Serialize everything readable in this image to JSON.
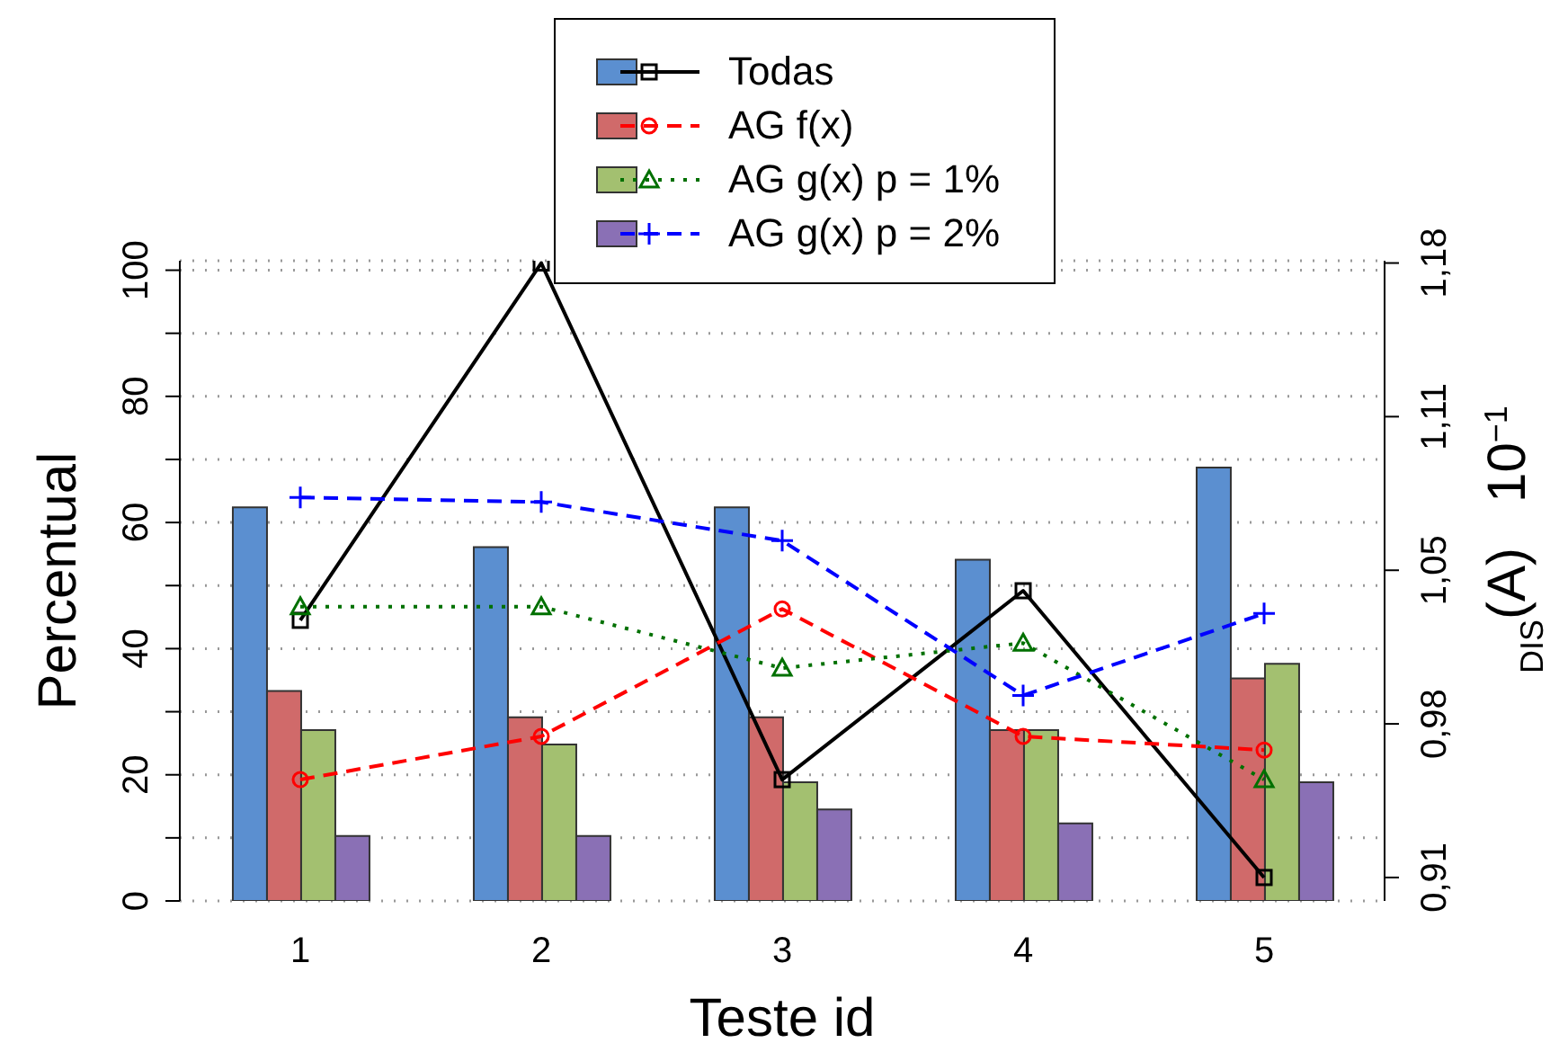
{
  "chart_data": {
    "type": "bar",
    "xlabel": "Teste id",
    "ylabel": "Percentual",
    "y2label": "$_{DIS}$(A)   10$^{−1}$",
    "categories": [
      "1",
      "2",
      "3",
      "4",
      "5"
    ],
    "series": [
      {
        "name": "Todas",
        "color": "#5b8fd0",
        "values": [
          62.4,
          56.1,
          62.4,
          54.1,
          68.7
        ]
      },
      {
        "name": "AG f(x)",
        "color": "#d06a6a",
        "values": [
          33.3,
          29.1,
          29.1,
          27.1,
          35.3
        ]
      },
      {
        "name": "AG g(x) p = 1%",
        "color": "#a3c070",
        "values": [
          27.1,
          24.8,
          18.8,
          27.1,
          37.6
        ]
      },
      {
        "name": "AG g(x) p = 2%",
        "color": "#8a70b5",
        "values": [
          10.3,
          10.3,
          14.5,
          12.3,
          18.8
        ]
      },
      {
        "type": "line",
        "axis": "y2",
        "color": "#000000",
        "marker": "square",
        "line_style": "solid",
        "values": [
          1.023,
          1.18,
          0.953,
          1.036,
          0.91
        ]
      },
      {
        "type": "line",
        "axis": "y2",
        "color": "#ff0000",
        "marker": "circle",
        "line_style": "dashed",
        "values": [
          0.953,
          0.972,
          1.028,
          0.972,
          0.966
        ]
      },
      {
        "type": "line",
        "axis": "y2",
        "color": "#007000",
        "marker": "triangle",
        "line_style": "dotted",
        "values": [
          1.029,
          1.029,
          1.002,
          1.013,
          0.953
        ]
      },
      {
        "type": "line",
        "axis": "y2",
        "color": "#0000ff",
        "marker": "cross",
        "line_style": "dashed",
        "values": [
          1.077,
          1.075,
          1.058,
          0.99,
          1.026
        ]
      }
    ],
    "ylim": [
      0,
      101.5
    ],
    "yticks": [
      0,
      {
        "value": 10,
        "label": null
      },
      20,
      {
        "value": 30,
        "label": null
      },
      40,
      {
        "value": 50,
        "label": null
      },
      60,
      {
        "value": 70,
        "label": null
      },
      80,
      {
        "value": 90,
        "label": null
      },
      100
    ],
    "y2lim": [
      0.8997,
      1.181
    ],
    "y2ticks": [
      {
        "value": 0.91,
        "label": "0,91"
      },
      {
        "value": 0.9775,
        "label": "0,98"
      },
      {
        "value": 1.045,
        "label": "1,05"
      },
      {
        "value": 1.1125,
        "label": "1,11"
      },
      {
        "value": 1.18,
        "label": "1,18"
      }
    ],
    "grid": "y",
    "legend": "top"
  }
}
